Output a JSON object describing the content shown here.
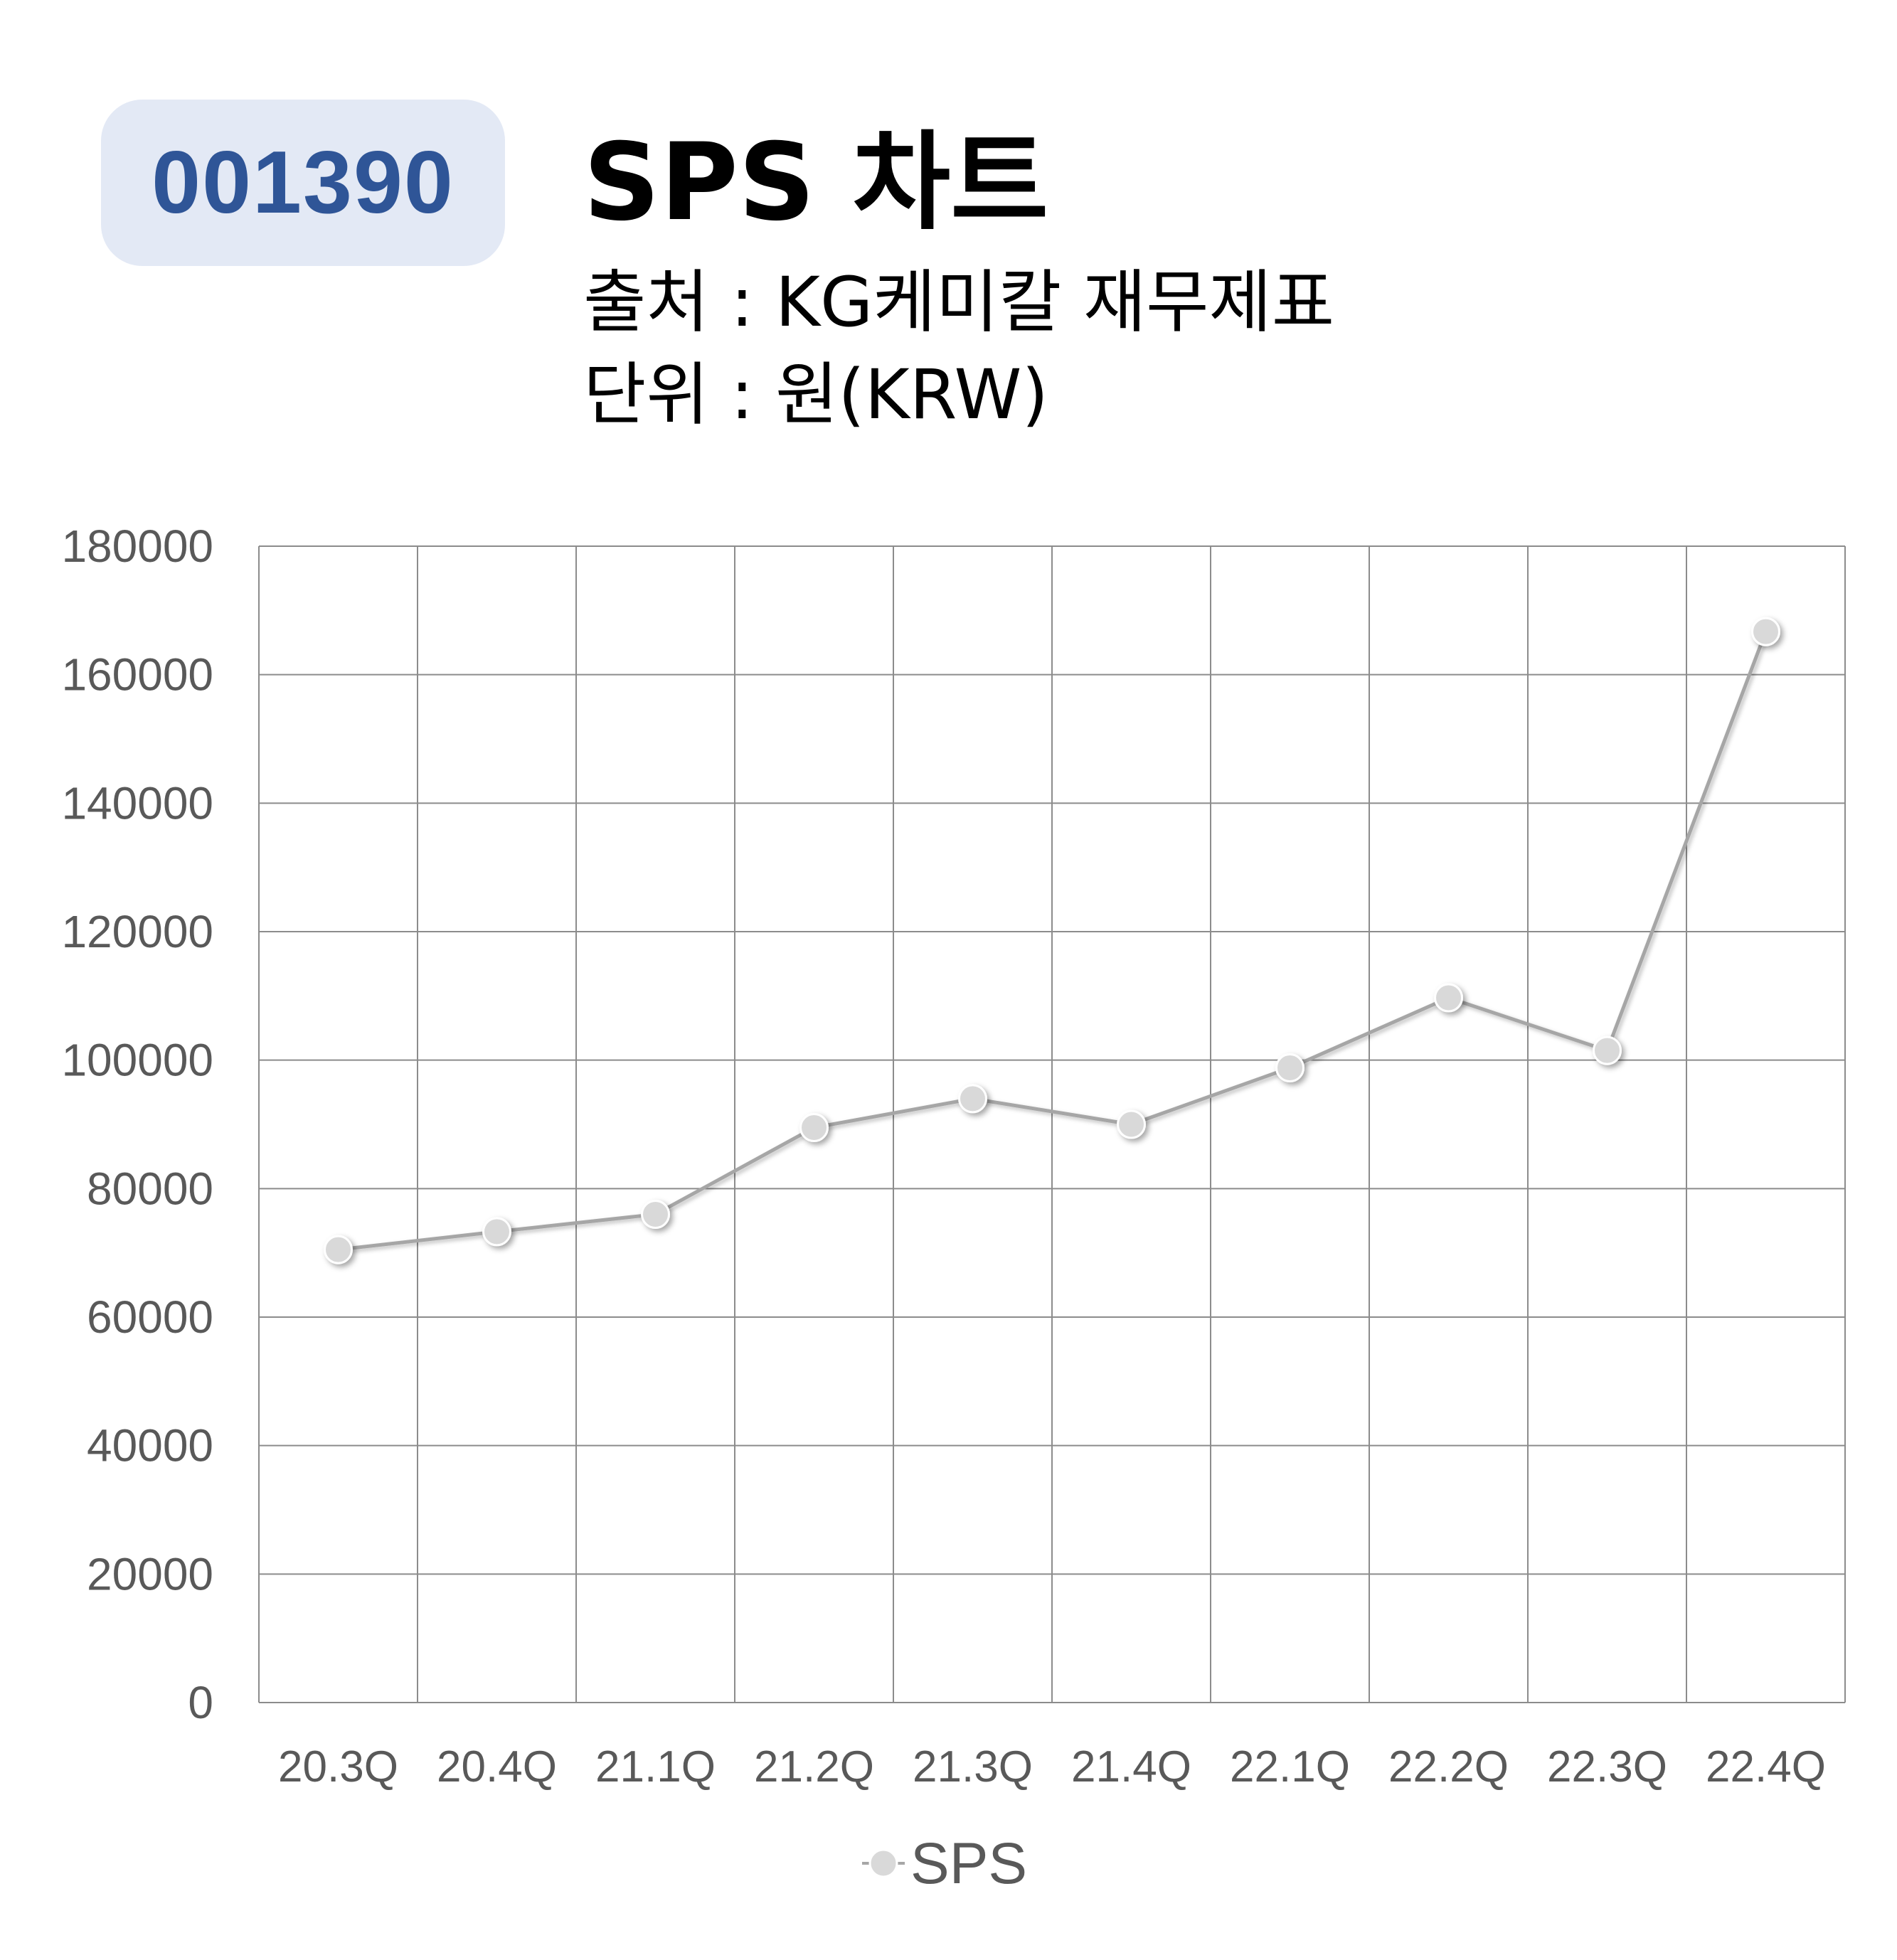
{
  "header": {
    "code": "001390",
    "title": "SPS 차트",
    "source": "출처 : KG케미칼 재무제표",
    "unit": "단위 : 원(KRW)"
  },
  "colors": {
    "badge_bg": "#e3e9f5",
    "badge_text": "#2f5597",
    "grid": "#8c8c8c",
    "line": "#a6a6a6",
    "marker": "#d9d9d9",
    "tick_text": "#595959"
  },
  "chart_data": {
    "type": "line",
    "title": "",
    "xlabel": "",
    "ylabel": "",
    "categories": [
      "20.3Q",
      "20.4Q",
      "21.1Q",
      "21.2Q",
      "21.3Q",
      "21.4Q",
      "22.1Q",
      "22.2Q",
      "22.3Q",
      "22.4Q"
    ],
    "series": [
      {
        "name": "SPS",
        "values": [
          70500,
          73300,
          76000,
          89500,
          94000,
          90000,
          98800,
          109700,
          101500,
          166700
        ]
      }
    ],
    "ylim": [
      0,
      180000
    ],
    "yticks": [
      "0",
      "20000",
      "40000",
      "60000",
      "80000",
      "100000",
      "120000",
      "140000",
      "160000",
      "180000"
    ],
    "grid": true,
    "legend": "bottom-center"
  }
}
